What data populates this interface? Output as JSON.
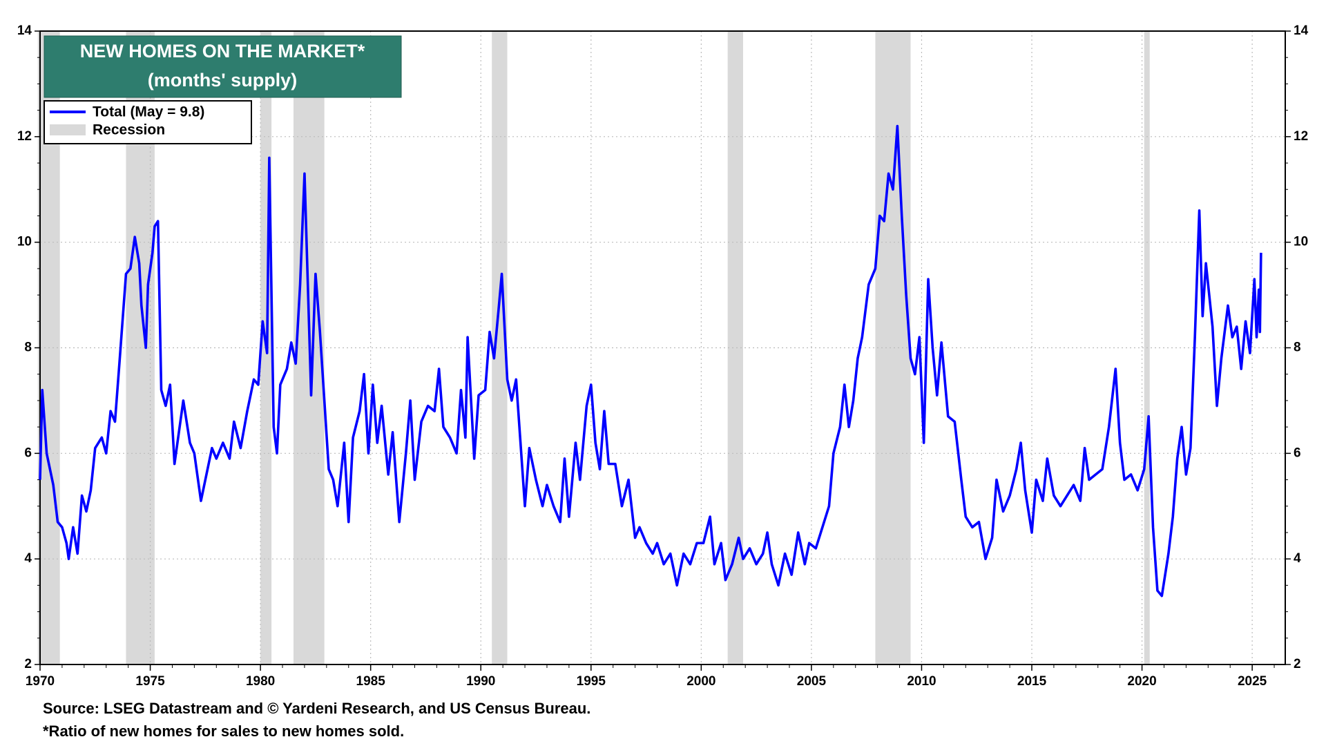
{
  "chart_data": {
    "type": "line",
    "title": "NEW HOMES ON THE MARKET*",
    "subtitle": "(months' supply)",
    "source": "Source: LSEG Datastream and © Yardeni Research, and US Census Bureau.",
    "footnote": "*Ratio of new homes for sales to new homes sold.",
    "recession_label": "Recession",
    "recession_color": "#d9d9d9",
    "recessions": [
      [
        1969.9,
        1970.9
      ],
      [
        1973.9,
        1975.2
      ],
      [
        1980.0,
        1980.5
      ],
      [
        1981.5,
        1982.9
      ],
      [
        1990.5,
        1991.2
      ],
      [
        2001.2,
        2001.9
      ],
      [
        2007.9,
        2009.5
      ],
      [
        2020.1,
        2020.35
      ]
    ],
    "xlim": [
      1970,
      2026.5
    ],
    "xticks": [
      1970,
      1975,
      1980,
      1985,
      1990,
      1995,
      2000,
      2005,
      2010,
      2015,
      2020,
      2025
    ],
    "ylim": [
      2,
      14
    ],
    "yticks": [
      2,
      4,
      6,
      8,
      10,
      12,
      14
    ],
    "y2lim": [
      2,
      14
    ],
    "y2ticks": [
      2,
      4,
      6,
      8,
      10,
      12,
      14
    ],
    "grid": true,
    "legend": "upper left",
    "x": [
      1970.0,
      1970.1,
      1970.3,
      1970.6,
      1970.8,
      1971.0,
      1971.2,
      1971.3,
      1971.5,
      1971.7,
      1971.9,
      1972.1,
      1972.3,
      1972.5,
      1972.8,
      1973.0,
      1973.2,
      1973.4,
      1973.6,
      1973.9,
      1974.1,
      1974.3,
      1974.5,
      1974.6,
      1974.8,
      1974.9,
      1975.1,
      1975.2,
      1975.35,
      1975.5,
      1975.7,
      1975.9,
      1976.1,
      1976.3,
      1976.5,
      1976.8,
      1977.0,
      1977.3,
      1977.5,
      1977.8,
      1978.0,
      1978.3,
      1978.6,
      1978.8,
      1979.1,
      1979.4,
      1979.7,
      1979.9,
      1980.1,
      1980.3,
      1980.4,
      1980.6,
      1980.75,
      1980.9,
      1981.2,
      1981.4,
      1981.6,
      1981.8,
      1982.0,
      1982.3,
      1982.5,
      1982.7,
      1982.9,
      1983.1,
      1983.3,
      1983.5,
      1983.8,
      1984.0,
      1984.2,
      1984.5,
      1984.7,
      1984.9,
      1985.1,
      1985.3,
      1985.5,
      1985.8,
      1986.0,
      1986.3,
      1986.6,
      1986.8,
      1987.0,
      1987.3,
      1987.6,
      1987.9,
      1988.1,
      1988.3,
      1988.6,
      1988.9,
      1989.1,
      1989.3,
      1989.4,
      1989.7,
      1989.9,
      1990.2,
      1990.4,
      1990.6,
      1990.8,
      1990.95,
      1991.2,
      1991.4,
      1991.6,
      1991.8,
      1992.0,
      1992.2,
      1992.5,
      1992.8,
      1993.0,
      1993.3,
      1993.6,
      1993.8,
      1994.0,
      1994.3,
      1994.5,
      1994.8,
      1995.0,
      1995.2,
      1995.4,
      1995.6,
      1995.8,
      1996.1,
      1996.4,
      1996.7,
      1997.0,
      1997.2,
      1997.5,
      1997.8,
      1998.0,
      1998.3,
      1998.6,
      1998.9,
      1999.2,
      1999.5,
      1999.8,
      2000.1,
      2000.4,
      2000.6,
      2000.9,
      2001.1,
      2001.4,
      2001.7,
      2001.9,
      2002.2,
      2002.5,
      2002.8,
      2003.0,
      2003.2,
      2003.5,
      2003.8,
      2004.1,
      2004.4,
      2004.7,
      2004.9,
      2005.2,
      2005.5,
      2005.8,
      2006.0,
      2006.3,
      2006.5,
      2006.7,
      2006.9,
      2007.1,
      2007.3,
      2007.6,
      2007.9,
      2008.1,
      2008.3,
      2008.5,
      2008.7,
      2008.9,
      2009.1,
      2009.3,
      2009.5,
      2009.7,
      2009.9,
      2010.1,
      2010.3,
      2010.5,
      2010.7,
      2010.9,
      2011.2,
      2011.5,
      2011.8,
      2012.0,
      2012.3,
      2012.6,
      2012.9,
      2013.2,
      2013.4,
      2013.7,
      2014.0,
      2014.3,
      2014.5,
      2014.7,
      2015.0,
      2015.2,
      2015.5,
      2015.7,
      2016.0,
      2016.3,
      2016.6,
      2016.9,
      2017.2,
      2017.4,
      2017.6,
      2017.9,
      2018.2,
      2018.5,
      2018.8,
      2019.0,
      2019.2,
      2019.5,
      2019.8,
      2020.1,
      2020.3,
      2020.5,
      2020.7,
      2020.9,
      2021.2,
      2021.4,
      2021.6,
      2021.8,
      2022.0,
      2022.2,
      2022.4,
      2022.6,
      2022.75,
      2022.9,
      2023.2,
      2023.4,
      2023.6,
      2023.9,
      2024.1,
      2024.3,
      2024.5,
      2024.7,
      2024.9,
      2025.1,
      2025.2,
      2025.3,
      2025.35,
      2025.4
    ],
    "series": [
      {
        "name": "Total (May = 9.8)",
        "color": "#0000ff",
        "values": [
          5.5,
          7.2,
          6.0,
          5.4,
          4.7,
          4.6,
          4.3,
          4.0,
          4.6,
          4.1,
          5.2,
          4.9,
          5.3,
          6.1,
          6.3,
          6.0,
          6.8,
          6.6,
          7.7,
          9.4,
          9.5,
          10.1,
          9.6,
          8.8,
          8.0,
          9.2,
          9.8,
          10.3,
          10.4,
          7.2,
          6.9,
          7.3,
          5.8,
          6.4,
          7.0,
          6.2,
          6.0,
          5.1,
          5.5,
          6.1,
          5.9,
          6.2,
          5.9,
          6.6,
          6.1,
          6.8,
          7.4,
          7.3,
          8.5,
          7.9,
          11.6,
          6.5,
          6.0,
          7.3,
          7.6,
          8.1,
          7.7,
          9.2,
          11.3,
          7.1,
          9.4,
          8.3,
          7.0,
          5.7,
          5.5,
          5.0,
          6.2,
          4.7,
          6.3,
          6.8,
          7.5,
          6.0,
          7.3,
          6.2,
          6.9,
          5.6,
          6.4,
          4.7,
          6.0,
          7.0,
          5.5,
          6.6,
          6.9,
          6.8,
          7.6,
          6.5,
          6.3,
          6.0,
          7.2,
          6.3,
          8.2,
          5.9,
          7.1,
          7.2,
          8.3,
          7.8,
          8.7,
          9.4,
          7.4,
          7.0,
          7.4,
          6.2,
          5.0,
          6.1,
          5.5,
          5.0,
          5.4,
          5.0,
          4.7,
          5.9,
          4.8,
          6.2,
          5.5,
          6.9,
          7.3,
          6.2,
          5.7,
          6.8,
          5.8,
          5.8,
          5.0,
          5.5,
          4.4,
          4.6,
          4.3,
          4.1,
          4.3,
          3.9,
          4.1,
          3.5,
          4.1,
          3.9,
          4.3,
          4.3,
          4.8,
          3.9,
          4.3,
          3.6,
          3.9,
          4.4,
          4.0,
          4.2,
          3.9,
          4.1,
          4.5,
          3.9,
          3.5,
          4.1,
          3.7,
          4.5,
          3.9,
          4.3,
          4.2,
          4.6,
          5.0,
          6.0,
          6.5,
          7.3,
          6.5,
          7.0,
          7.8,
          8.2,
          9.2,
          9.5,
          10.5,
          10.4,
          11.3,
          11.0,
          12.2,
          10.5,
          9.0,
          7.8,
          7.5,
          8.2,
          6.2,
          9.3,
          8.0,
          7.1,
          8.1,
          6.7,
          6.6,
          5.5,
          4.8,
          4.6,
          4.7,
          4.0,
          4.4,
          5.5,
          4.9,
          5.2,
          5.7,
          6.2,
          5.3,
          4.5,
          5.5,
          5.1,
          5.9,
          5.2,
          5.0,
          5.2,
          5.4,
          5.1,
          6.1,
          5.5,
          5.6,
          5.7,
          6.5,
          7.6,
          6.2,
          5.5,
          5.6,
          5.3,
          5.7,
          6.7,
          4.6,
          3.4,
          3.3,
          4.1,
          4.8,
          5.9,
          6.5,
          5.6,
          6.1,
          8.2,
          10.6,
          8.6,
          9.6,
          8.4,
          6.9,
          7.8,
          8.8,
          8.2,
          8.4,
          7.6,
          8.5,
          7.9,
          9.3,
          8.2,
          9.1,
          8.3,
          9.8
        ]
      }
    ]
  }
}
